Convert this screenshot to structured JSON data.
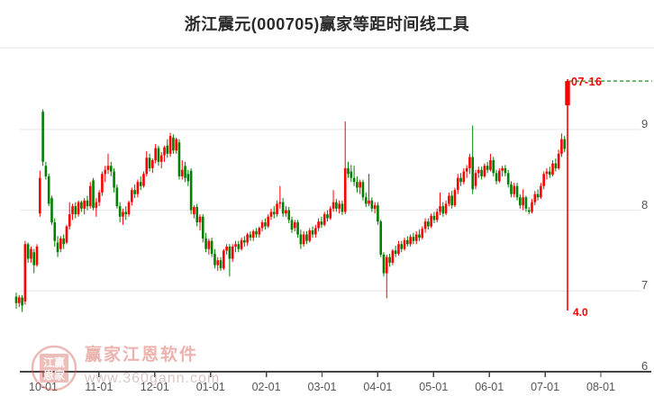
{
  "page": {
    "title": "浙江震元(000705)赢家等距时间线工具"
  },
  "marker": {
    "date_label": "07-16",
    "value_label": "4.0"
  },
  "watermark": {
    "brand": "赢家江恩软件",
    "url": "www.360gann.com",
    "seal_top": "江赢",
    "seal_bottom": "恩家"
  },
  "colors": {
    "up": "#fe0000",
    "down": "#008000",
    "marker_line": "#fe0000",
    "dashed_line": "#008000",
    "grid": "#e4e4e4",
    "axis": "#444444",
    "tick_text": "#555555",
    "watermark": "#d6605 6"
  },
  "chart_data": {
    "type": "candlestick",
    "title": "浙江震元(000705)赢家等距时间线工具",
    "xlabel": "",
    "ylabel": "",
    "x_tick_labels": [
      "10-01",
      "11-01",
      "12-01",
      "01-01",
      "02-01",
      "03-01",
      "04-01",
      "05-01",
      "06-01",
      "07-01",
      "08-01"
    ],
    "y_tick_labels": [
      "9",
      "8",
      "7",
      "6"
    ],
    "y_tick_values": [
      9,
      8,
      7,
      6
    ],
    "y_range": [
      6.0,
      10.0
    ],
    "grid": true,
    "legend": "none",
    "up_color": "#fe0000",
    "down_color": "#008000",
    "annotations": {
      "vertical_timeline_date": "07-16",
      "vertical_timeline_value": "4.0",
      "dashed_level": 9.6,
      "timeline_bottom_price": 6.76
    },
    "candles": [
      [
        6.93,
        6.98,
        6.78,
        6.85
      ],
      [
        6.85,
        6.95,
        6.8,
        6.92
      ],
      [
        6.92,
        6.95,
        6.74,
        6.82
      ],
      [
        6.87,
        7.62,
        6.83,
        7.58
      ],
      [
        7.58,
        7.6,
        7.35,
        7.4
      ],
      [
        7.4,
        7.55,
        7.35,
        7.52
      ],
      [
        7.48,
        7.52,
        7.22,
        7.32
      ],
      [
        7.32,
        7.58,
        7.3,
        7.55
      ],
      [
        7.96,
        8.49,
        7.92,
        8.4
      ],
      [
        9.22,
        9.25,
        8.55,
        8.6
      ],
      [
        8.55,
        8.6,
        8.38,
        8.42
      ],
      [
        8.42,
        8.45,
        8.05,
        8.08
      ],
      [
        8.15,
        8.18,
        7.82,
        7.85
      ],
      [
        7.85,
        7.9,
        7.55,
        7.62
      ],
      [
        7.6,
        7.68,
        7.42,
        7.48
      ],
      [
        7.52,
        7.68,
        7.48,
        7.65
      ],
      [
        7.65,
        7.7,
        7.52,
        7.58
      ],
      [
        7.6,
        7.82,
        7.58,
        7.8
      ],
      [
        7.8,
        8.1,
        7.76,
        7.95
      ],
      [
        7.95,
        8.08,
        7.88,
        8.05
      ],
      [
        8.05,
        8.1,
        7.9,
        7.95
      ],
      [
        7.95,
        8.12,
        7.92,
        8.1
      ],
      [
        8.1,
        8.12,
        7.98,
        8.02
      ],
      [
        8.02,
        8.15,
        7.95,
        8.12
      ],
      [
        8.12,
        8.18,
        8.0,
        8.05
      ],
      [
        8.05,
        8.35,
        8.02,
        8.3
      ],
      [
        8.37,
        8.4,
        8.0,
        8.03
      ],
      [
        8.03,
        8.15,
        7.92,
        8.1
      ],
      [
        8.1,
        8.25,
        8.05,
        8.22
      ],
      [
        8.22,
        8.48,
        8.18,
        8.45
      ],
      [
        8.45,
        8.55,
        8.35,
        8.5
      ],
      [
        8.5,
        8.7,
        8.45,
        8.55
      ],
      [
        8.55,
        8.6,
        8.42,
        8.48
      ],
      [
        8.48,
        8.52,
        8.22,
        8.28
      ],
      [
        8.28,
        8.32,
        8.02,
        8.05
      ],
      [
        8.05,
        8.1,
        7.85,
        7.92
      ],
      [
        7.92,
        8.02,
        7.82,
        7.98
      ],
      [
        7.98,
        8.05,
        7.88,
        7.95
      ],
      [
        7.95,
        8.12,
        7.92,
        8.1
      ],
      [
        8.1,
        8.28,
        8.06,
        8.25
      ],
      [
        8.25,
        8.32,
        8.15,
        8.2
      ],
      [
        8.2,
        8.38,
        8.16,
        8.35
      ],
      [
        8.35,
        8.42,
        8.25,
        8.3
      ],
      [
        8.3,
        8.48,
        8.28,
        8.45
      ],
      [
        8.45,
        8.73,
        8.42,
        8.65
      ],
      [
        8.65,
        8.7,
        8.48,
        8.52
      ],
      [
        8.52,
        8.64,
        8.46,
        8.62
      ],
      [
        8.62,
        8.82,
        8.58,
        8.77
      ],
      [
        8.77,
        8.8,
        8.55,
        8.6
      ],
      [
        8.6,
        8.72,
        8.52,
        8.68
      ],
      [
        8.68,
        8.8,
        8.6,
        8.78
      ],
      [
        8.8,
        8.88,
        8.65,
        8.7
      ],
      [
        8.7,
        8.96,
        8.66,
        8.92
      ],
      [
        8.9,
        8.94,
        8.7,
        8.74
      ],
      [
        8.74,
        8.9,
        8.7,
        8.88
      ],
      [
        8.84,
        8.88,
        8.38,
        8.42
      ],
      [
        8.42,
        8.62,
        8.38,
        8.5
      ],
      [
        8.55,
        8.6,
        8.35,
        8.4
      ],
      [
        8.45,
        8.5,
        8.3,
        8.36
      ],
      [
        8.49,
        8.52,
        7.95,
        8.0
      ],
      [
        7.95,
        8.06,
        7.9,
        8.04
      ],
      [
        8.04,
        8.08,
        7.8,
        7.85
      ],
      [
        7.85,
        7.95,
        7.75,
        7.92
      ],
      [
        7.92,
        7.95,
        7.6,
        7.65
      ],
      [
        7.65,
        7.72,
        7.48,
        7.52
      ],
      [
        7.52,
        7.65,
        7.45,
        7.62
      ],
      [
        7.62,
        7.66,
        7.42,
        7.46
      ],
      [
        7.46,
        7.52,
        7.28,
        7.32
      ],
      [
        7.32,
        7.42,
        7.25,
        7.38
      ],
      [
        7.38,
        7.42,
        7.25,
        7.28
      ],
      [
        7.28,
        7.52,
        7.26,
        7.5
      ],
      [
        7.5,
        7.58,
        7.45,
        7.55
      ],
      [
        7.55,
        7.58,
        7.18,
        7.4
      ],
      [
        7.4,
        7.58,
        7.36,
        7.55
      ],
      [
        7.55,
        7.62,
        7.48,
        7.58
      ],
      [
        7.58,
        7.62,
        7.48,
        7.52
      ],
      [
        7.52,
        7.66,
        7.5,
        7.63
      ],
      [
        7.63,
        7.68,
        7.55,
        7.6
      ],
      [
        7.6,
        7.72,
        7.56,
        7.7
      ],
      [
        7.7,
        7.74,
        7.62,
        7.66
      ],
      [
        7.66,
        7.76,
        7.62,
        7.74
      ],
      [
        7.74,
        7.78,
        7.66,
        7.7
      ],
      [
        7.7,
        7.8,
        7.66,
        7.78
      ],
      [
        7.78,
        7.88,
        7.74,
        7.85
      ],
      [
        7.85,
        7.9,
        7.76,
        7.8
      ],
      [
        7.8,
        7.95,
        7.78,
        7.92
      ],
      [
        7.92,
        8.02,
        7.88,
        7.98
      ],
      [
        7.98,
        8.05,
        7.9,
        7.95
      ],
      [
        7.95,
        8.12,
        7.92,
        8.08
      ],
      [
        8.08,
        8.3,
        8.02,
        8.1
      ],
      [
        8.1,
        8.15,
        7.92,
        7.96
      ],
      [
        7.96,
        8.05,
        7.92,
        8.0
      ],
      [
        8.0,
        8.04,
        7.84,
        7.88
      ],
      [
        7.88,
        7.92,
        7.72,
        7.76
      ],
      [
        7.78,
        7.88,
        7.74,
        7.85
      ],
      [
        7.85,
        7.88,
        7.66,
        7.7
      ],
      [
        7.7,
        7.76,
        7.52,
        7.58
      ],
      [
        7.58,
        7.74,
        7.55,
        7.7
      ],
      [
        7.7,
        7.74,
        7.58,
        7.62
      ],
      [
        7.62,
        7.78,
        7.6,
        7.75
      ],
      [
        7.75,
        7.8,
        7.66,
        7.7
      ],
      [
        7.7,
        7.82,
        7.66,
        7.78
      ],
      [
        7.78,
        7.9,
        7.74,
        7.86
      ],
      [
        7.86,
        7.92,
        7.78,
        7.82
      ],
      [
        7.82,
        7.98,
        7.8,
        7.95
      ],
      [
        7.95,
        8.0,
        7.86,
        7.9
      ],
      [
        7.9,
        8.05,
        7.88,
        8.02
      ],
      [
        8.02,
        8.25,
        7.98,
        8.1
      ],
      [
        8.1,
        8.14,
        7.98,
        8.02
      ],
      [
        8.02,
        8.12,
        7.96,
        8.08
      ],
      [
        8.08,
        8.12,
        7.94,
        7.98
      ],
      [
        7.98,
        9.1,
        7.95,
        8.52
      ],
      [
        8.52,
        8.6,
        8.4,
        8.45
      ],
      [
        8.48,
        8.56,
        8.35,
        8.4
      ],
      [
        8.4,
        8.55,
        8.3,
        8.35
      ],
      [
        8.35,
        8.42,
        8.22,
        8.28
      ],
      [
        8.28,
        8.38,
        8.2,
        8.35
      ],
      [
        8.35,
        8.38,
        8.12,
        8.16
      ],
      [
        8.16,
        8.22,
        8.04,
        8.08
      ],
      [
        8.08,
        8.45,
        8.05,
        8.12
      ],
      [
        8.12,
        8.16,
        7.98,
        8.02
      ],
      [
        8.02,
        8.1,
        7.96,
        8.06
      ],
      [
        8.06,
        8.1,
        7.82,
        7.86
      ],
      [
        7.86,
        7.88,
        7.42,
        7.45
      ],
      [
        7.45,
        7.48,
        7.18,
        7.22
      ],
      [
        7.22,
        7.45,
        6.91,
        7.42
      ],
      [
        7.42,
        7.46,
        7.3,
        7.35
      ],
      [
        7.35,
        7.52,
        7.32,
        7.5
      ],
      [
        7.5,
        7.56,
        7.42,
        7.46
      ],
      [
        7.46,
        7.62,
        7.44,
        7.58
      ],
      [
        7.58,
        7.62,
        7.48,
        7.52
      ],
      [
        7.52,
        7.66,
        7.5,
        7.63
      ],
      [
        7.63,
        7.68,
        7.55,
        7.58
      ],
      [
        7.58,
        7.7,
        7.55,
        7.67
      ],
      [
        7.67,
        7.72,
        7.58,
        7.62
      ],
      [
        7.62,
        7.74,
        7.58,
        7.7
      ],
      [
        7.7,
        7.76,
        7.62,
        7.66
      ],
      [
        7.66,
        7.8,
        7.64,
        7.77
      ],
      [
        7.77,
        7.9,
        7.72,
        7.86
      ],
      [
        7.86,
        7.9,
        7.76,
        7.8
      ],
      [
        7.8,
        7.96,
        7.78,
        7.93
      ],
      [
        7.93,
        7.98,
        7.84,
        7.88
      ],
      [
        7.88,
        8.02,
        7.85,
        7.98
      ],
      [
        7.98,
        8.22,
        7.94,
        8.05
      ],
      [
        8.05,
        8.1,
        7.92,
        7.96
      ],
      [
        7.96,
        8.12,
        7.94,
        8.08
      ],
      [
        8.08,
        8.22,
        8.05,
        8.18
      ],
      [
        8.18,
        8.24,
        8.02,
        8.06
      ],
      [
        8.06,
        8.28,
        8.04,
        8.25
      ],
      [
        8.25,
        8.45,
        8.2,
        8.4
      ],
      [
        8.4,
        8.46,
        8.3,
        8.35
      ],
      [
        8.35,
        8.52,
        8.32,
        8.48
      ],
      [
        8.48,
        8.56,
        8.4,
        8.52
      ],
      [
        8.52,
        8.7,
        8.45,
        8.66
      ],
      [
        8.66,
        9.05,
        8.2,
        8.26
      ],
      [
        8.3,
        8.5,
        8.26,
        8.46
      ],
      [
        8.46,
        8.54,
        8.4,
        8.5
      ],
      [
        8.5,
        8.54,
        8.38,
        8.42
      ],
      [
        8.42,
        8.58,
        8.4,
        8.55
      ],
      [
        8.55,
        8.6,
        8.46,
        8.5
      ],
      [
        8.5,
        8.7,
        8.48,
        8.62
      ],
      [
        8.62,
        8.66,
        8.42,
        8.46
      ],
      [
        8.46,
        8.5,
        8.32,
        8.36
      ],
      [
        8.36,
        8.52,
        8.34,
        8.49
      ],
      [
        8.49,
        8.55,
        8.42,
        8.52
      ],
      [
        8.52,
        8.56,
        8.42,
        8.46
      ],
      [
        8.46,
        8.5,
        8.28,
        8.32
      ],
      [
        8.32,
        8.36,
        8.16,
        8.2
      ],
      [
        8.2,
        8.34,
        8.16,
        8.3
      ],
      [
        8.3,
        8.34,
        8.12,
        8.16
      ],
      [
        8.16,
        8.2,
        8.02,
        8.06
      ],
      [
        8.06,
        8.26,
        8.0,
        8.16
      ],
      [
        8.16,
        8.18,
        7.98,
        8.02
      ],
      [
        8.0,
        8.04,
        7.95,
        7.98
      ],
      [
        7.98,
        8.14,
        7.96,
        8.1
      ],
      [
        8.1,
        8.24,
        8.06,
        8.2
      ],
      [
        8.2,
        8.26,
        8.12,
        8.16
      ],
      [
        8.16,
        8.34,
        8.14,
        8.3
      ],
      [
        8.3,
        8.48,
        8.26,
        8.45
      ],
      [
        8.45,
        8.52,
        8.38,
        8.48
      ],
      [
        8.48,
        8.54,
        8.4,
        8.44
      ],
      [
        8.44,
        8.62,
        8.42,
        8.58
      ],
      [
        8.58,
        8.64,
        8.48,
        8.52
      ],
      [
        8.52,
        8.75,
        8.5,
        8.7
      ],
      [
        8.7,
        8.95,
        8.66,
        8.88
      ],
      [
        8.88,
        8.92,
        8.72,
        8.76
      ],
      [
        9.3,
        9.62,
        9.27,
        9.6
      ]
    ]
  }
}
